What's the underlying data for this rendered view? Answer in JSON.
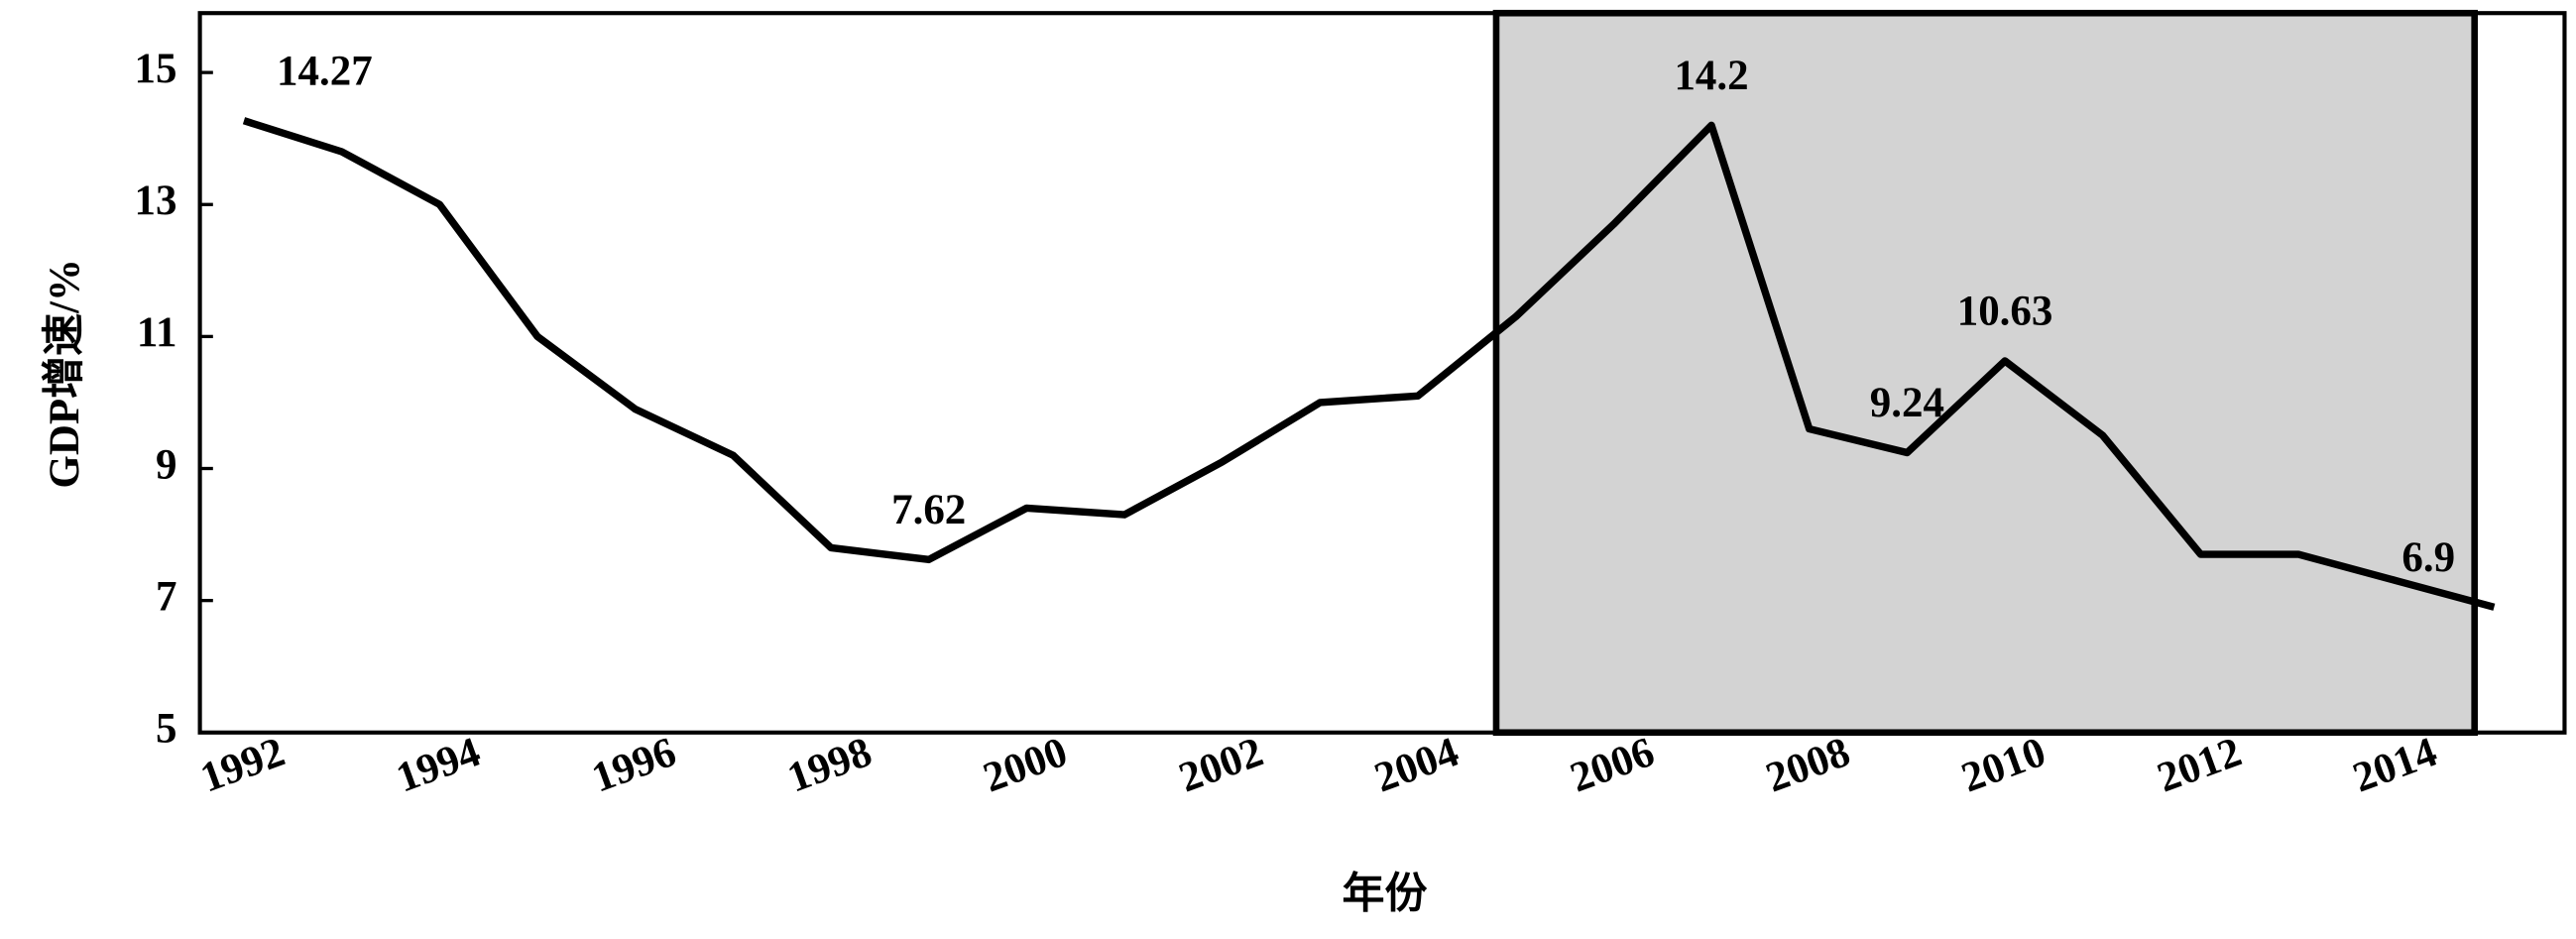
{
  "chart_data": {
    "type": "line",
    "x_label": "年份",
    "y_label": "GDP增速/%",
    "x": [
      1992,
      1993,
      1994,
      1995,
      1996,
      1997,
      1998,
      1999,
      2000,
      2001,
      2002,
      2003,
      2004,
      2005,
      2006,
      2007,
      2008,
      2009,
      2010,
      2011,
      2012,
      2013,
      2014,
      2015
    ],
    "series": [
      {
        "color": "#000000",
        "values": [
          14.27,
          13.8,
          13.0,
          11.0,
          9.9,
          9.2,
          7.8,
          7.62,
          8.4,
          8.3,
          9.1,
          10.0,
          10.1,
          11.3,
          12.7,
          14.2,
          9.6,
          9.24,
          10.63,
          9.5,
          7.7,
          7.7,
          7.3,
          6.9
        ]
      }
    ],
    "data_labels": [
      0,
      7,
      15,
      17,
      18,
      23
    ],
    "highlight_range": [
      2004.8,
      2014.8
    ],
    "highlight_color": "#d3d3d3",
    "xlim": [
      1991.55,
      2015.72
    ],
    "ylim": [
      5,
      15.9
    ],
    "xticks": [
      1992,
      1994,
      1996,
      1998,
      2000,
      2002,
      2004,
      2006,
      2008,
      2010,
      2012,
      2014
    ],
    "yticks": [
      5,
      7,
      9,
      11,
      13,
      15
    ]
  }
}
